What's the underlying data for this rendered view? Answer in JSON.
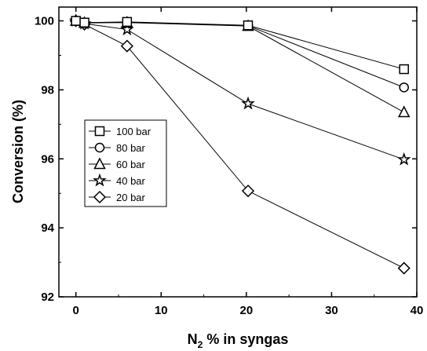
{
  "chart_data": {
    "type": "line",
    "title": "",
    "xlabel_main": "N",
    "xlabel_sub": "2",
    "xlabel_rest": " % in syngas",
    "ylabel": "Conversion (%)",
    "xlim": [
      -2,
      40
    ],
    "ylim": [
      92,
      100.4
    ],
    "xticks": [
      0,
      10,
      20,
      30,
      40
    ],
    "yticks": [
      92,
      94,
      96,
      98,
      100
    ],
    "grid": false,
    "legend_position": "middle-left",
    "series": [
      {
        "name": "100 bar",
        "marker": "square",
        "x": [
          0,
          1,
          6,
          20.2,
          38.5
        ],
        "y": [
          100.0,
          99.95,
          99.97,
          99.87,
          98.6
        ]
      },
      {
        "name": "80 bar",
        "marker": "circle",
        "x": [
          0,
          1,
          6,
          20.2,
          38.5
        ],
        "y": [
          100.0,
          99.95,
          99.96,
          99.86,
          98.07
        ]
      },
      {
        "name": "60 bar",
        "marker": "triangle",
        "x": [
          0,
          1,
          6,
          20.2,
          38.5
        ],
        "y": [
          100.0,
          99.94,
          99.95,
          99.85,
          97.35
        ]
      },
      {
        "name": "40 bar",
        "marker": "star",
        "x": [
          0,
          1,
          6,
          20.2,
          38.5
        ],
        "y": [
          100.0,
          99.92,
          99.75,
          97.6,
          95.98
        ]
      },
      {
        "name": "20 bar",
        "marker": "diamond",
        "x": [
          0,
          1,
          6,
          20.2,
          38.5
        ],
        "y": [
          100.0,
          99.9,
          99.27,
          95.07,
          92.83
        ]
      }
    ]
  }
}
